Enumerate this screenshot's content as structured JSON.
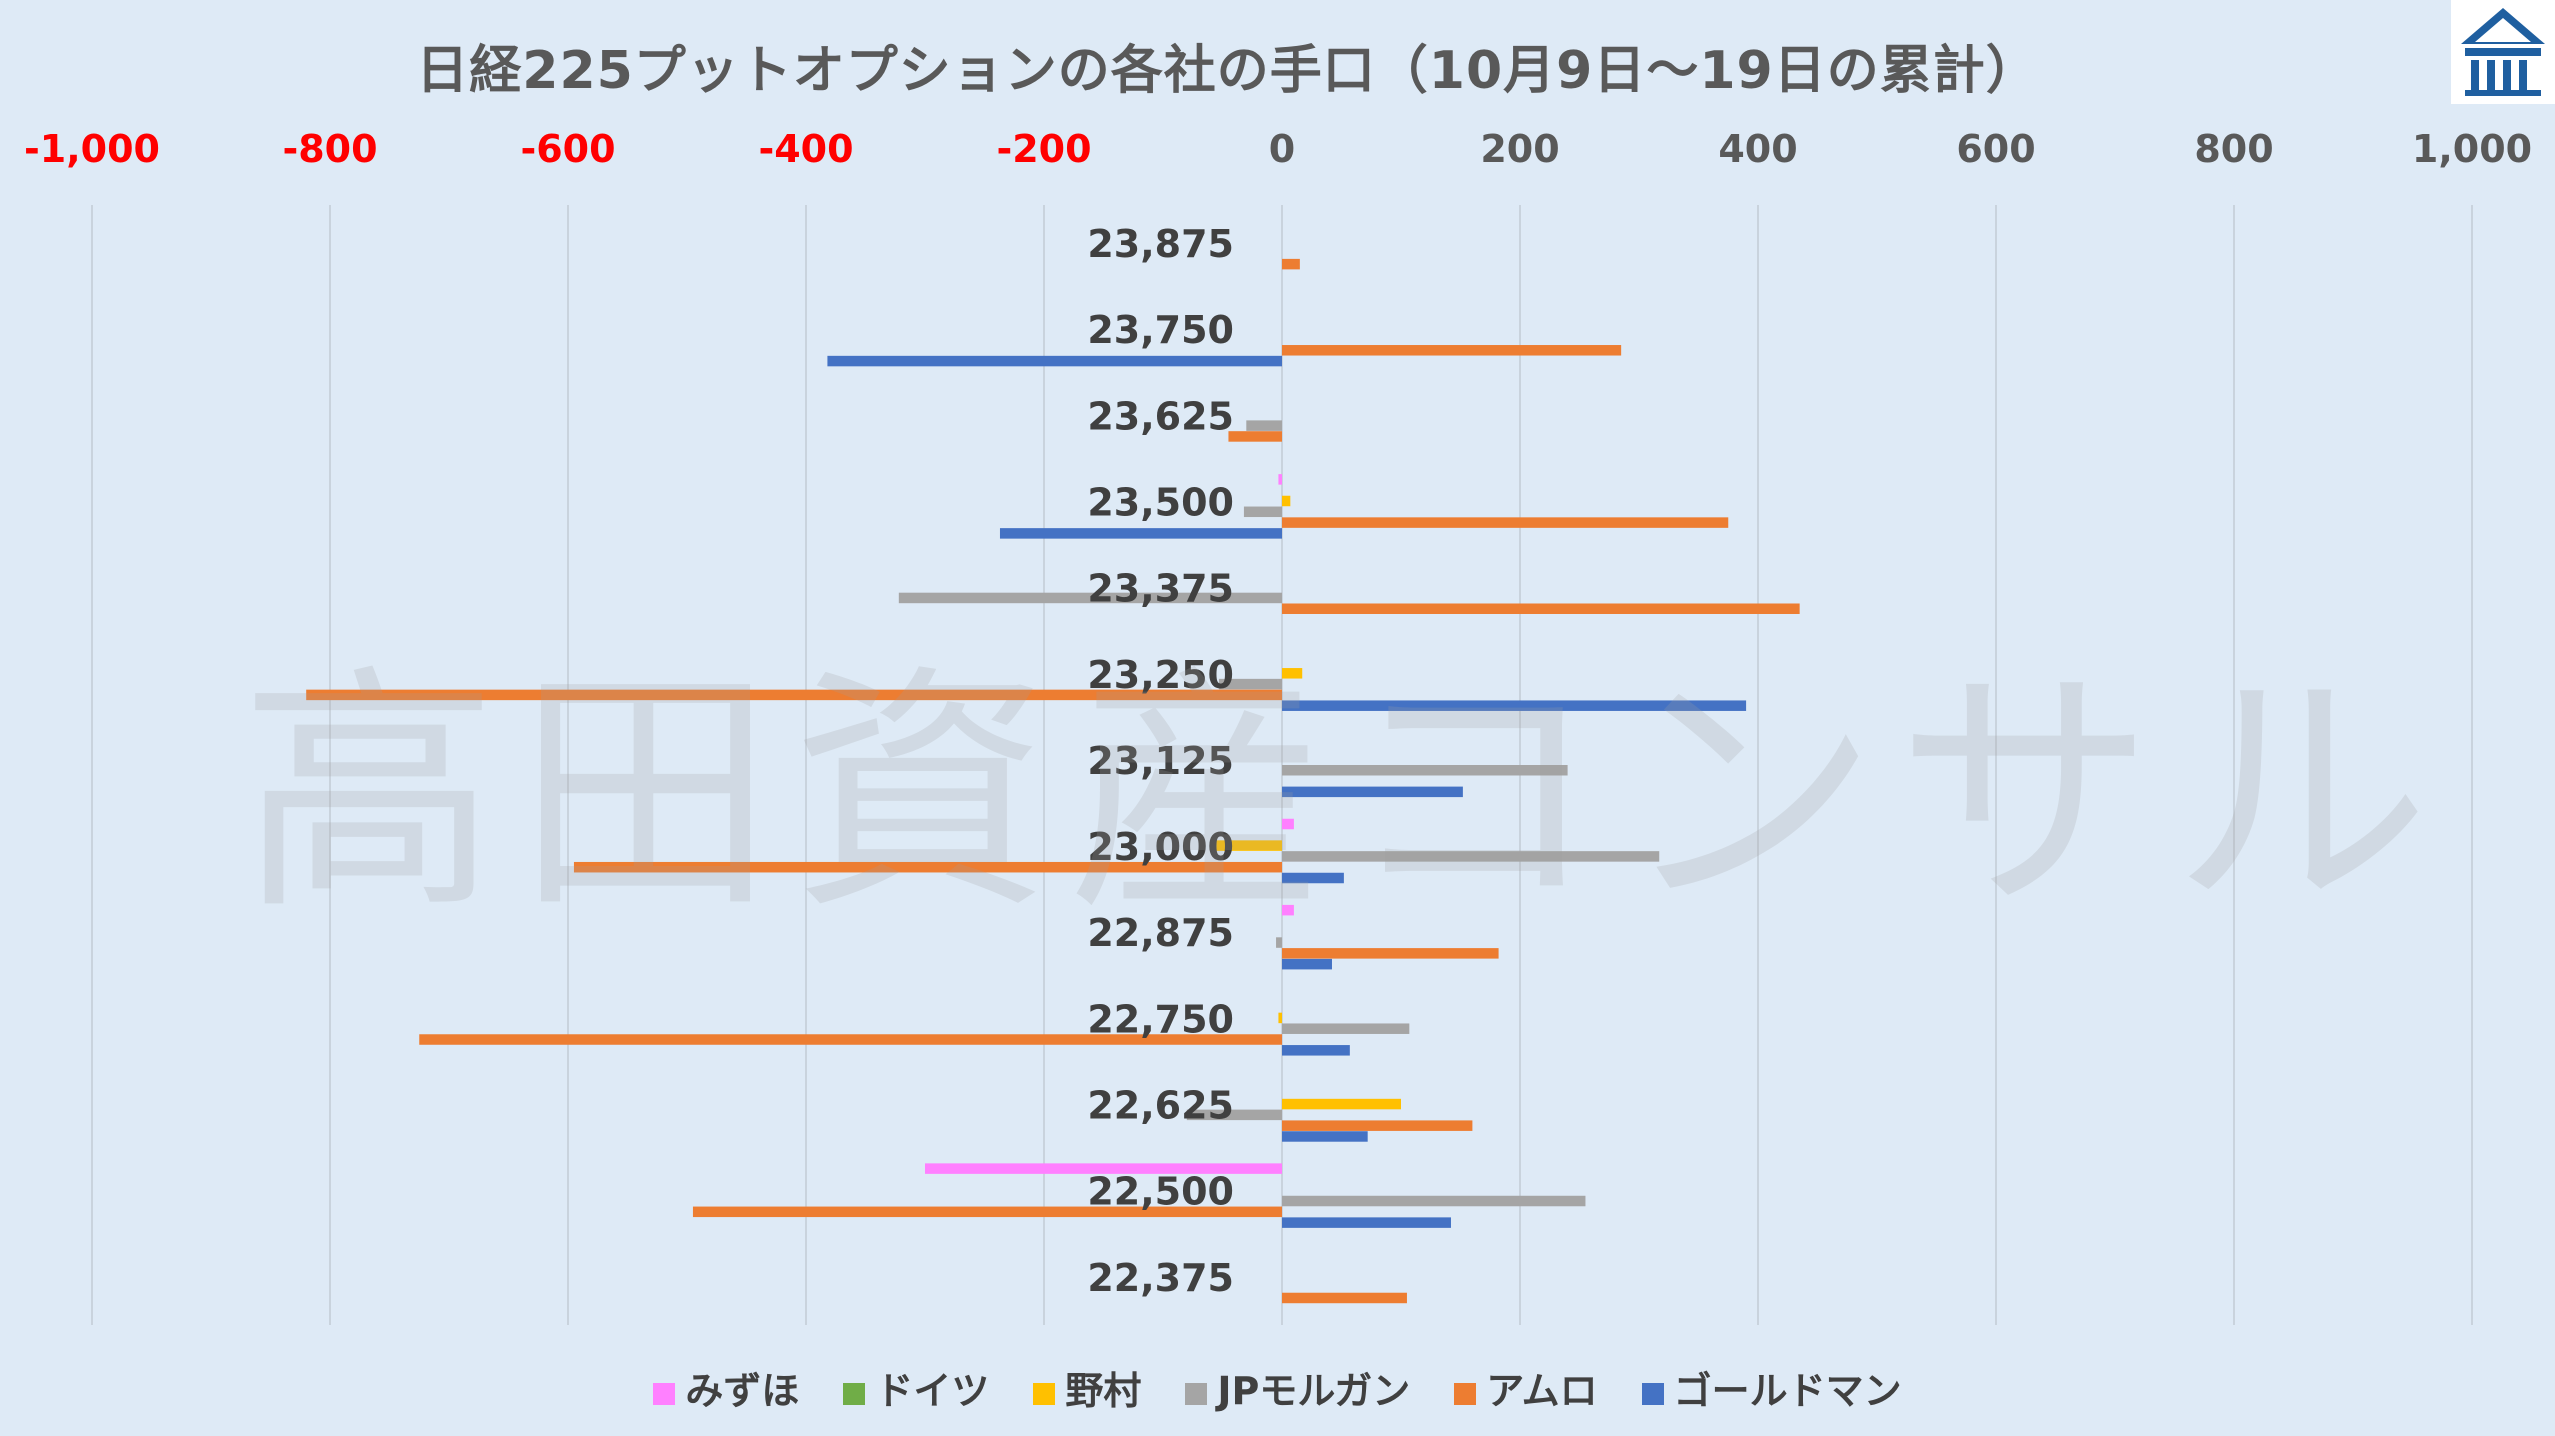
{
  "chart_data": {
    "type": "bar",
    "orientation": "horizontal",
    "title": "日経225プットオプションの各社の手口（10月9日～19日の累計）",
    "categories": [
      "23,875",
      "23,750",
      "23,625",
      "23,500",
      "23,375",
      "23,250",
      "23,125",
      "23,000",
      "22,875",
      "22,750",
      "22,625",
      "22,500",
      "22,375"
    ],
    "xlim": [
      -1000,
      1000
    ],
    "xticks": [
      -1000,
      -800,
      -600,
      -400,
      -200,
      0,
      200,
      400,
      600,
      800,
      1000
    ],
    "xtick_labels": [
      "-1,000",
      "-800",
      "-600",
      "-400",
      "-200",
      "0",
      "200",
      "400",
      "600",
      "800",
      "1,000"
    ],
    "negative_tick_color": "#ff0000",
    "tick_color": "#595959",
    "axis_position": "top",
    "grid": true,
    "legend_position": "bottom",
    "series": [
      {
        "name": "みずほ",
        "color": "#ff80ff",
        "values": [
          0,
          0,
          0,
          -3,
          0,
          0,
          0,
          10,
          10,
          0,
          0,
          -300,
          0
        ]
      },
      {
        "name": "ドイツ",
        "color": "#70ad47",
        "values": [
          0,
          0,
          0,
          0,
          0,
          0,
          0,
          0,
          0,
          0,
          0,
          0,
          0
        ]
      },
      {
        "name": "野村",
        "color": "#ffc000",
        "values": [
          0,
          0,
          0,
          7,
          0,
          17,
          0,
          -55,
          0,
          -3,
          100,
          0,
          0
        ]
      },
      {
        "name": "JPモルガン",
        "color": "#a5a5a5",
        "values": [
          0,
          0,
          -30,
          -32,
          -322,
          -53,
          240,
          317,
          -5,
          107,
          -80,
          255,
          0
        ]
      },
      {
        "name": "アムロ",
        "color": "#ed7d31",
        "values": [
          15,
          285,
          -45,
          375,
          435,
          -820,
          0,
          -595,
          182,
          -725,
          160,
          -495,
          105
        ]
      },
      {
        "name": "ゴールドマン",
        "color": "#4472c4",
        "values": [
          0,
          -382,
          0,
          -237,
          0,
          390,
          152,
          52,
          42,
          57,
          72,
          142,
          0
        ]
      }
    ]
  },
  "watermark_text": "高田資産コンサル",
  "logo_icon": "takada-logo-icon"
}
